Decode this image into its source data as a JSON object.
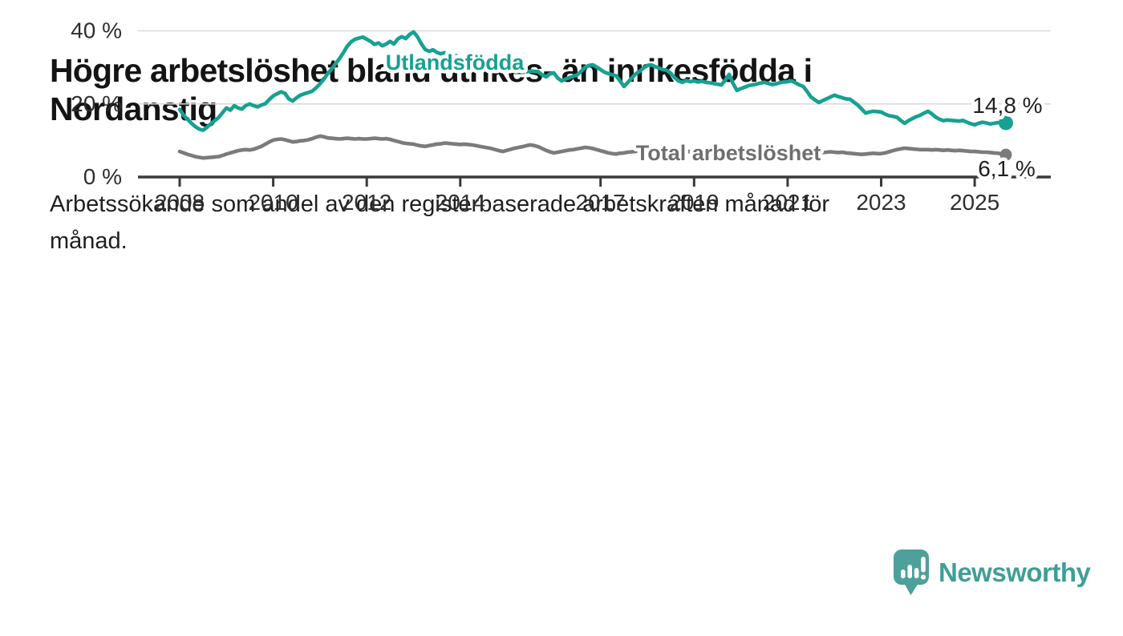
{
  "header": {
    "title_line1": "Högre arbetslöshet bland utrikes- än inrikesfödda i",
    "title_line2": "Nordanstig",
    "subtitle_line1": "Arbetssökande som andel av den registerbaserade arbetskraften månad för",
    "subtitle_line2": "månad."
  },
  "footer": {
    "brand": "Newsworthy",
    "logo_icon": "speech-bubble-bar-chart",
    "brand_color": "#3f9e96",
    "icon_color": "#4da19a"
  },
  "colors": {
    "foreign_born_line": "#16a192",
    "total_line": "#7b7b7b",
    "total_label": "#6f6f6f",
    "end_label": "#222222",
    "axis": "#3a3a3a",
    "tick_text": "#2e2e2e",
    "gridline": "#d9d9d9"
  },
  "chart_data": {
    "type": "line",
    "title": "Högre arbetslöshet bland utrikes- än inrikesfödda i Nordanstig",
    "subtitle": "Arbetssökande som andel av den registerbaserade arbetskraften månad för månad.",
    "unit": "%",
    "x_start_year": 2008,
    "x_step_months": 1,
    "x_ticks": [
      2008,
      2010,
      2012,
      2014,
      2017,
      2019,
      2021,
      2023,
      2025
    ],
    "y_ticks": [
      {
        "value": 0,
        "label": "0 %"
      },
      {
        "value": 20,
        "label": "20 %"
      },
      {
        "value": 40,
        "label": "40 %"
      }
    ],
    "ylim": [
      0,
      40
    ],
    "grid": "horizontal",
    "legend_position": "inline-labels",
    "series": [
      {
        "name": "Utlandsfödda",
        "color": "#16a192",
        "end_label": "14,8 %",
        "end_value": 14.8,
        "values": [
          18.5,
          16.9,
          15.8,
          14.7,
          13.8,
          13.1,
          12.8,
          13.6,
          14.6,
          15.4,
          16.3,
          17.6,
          18.9,
          18.3,
          19.5,
          18.9,
          18.6,
          19.6,
          20.0,
          19.5,
          19.2,
          19.7,
          20.1,
          21.2,
          22.2,
          22.8,
          23.3,
          22.9,
          21.4,
          20.8,
          21.7,
          22.4,
          22.8,
          23.1,
          23.5,
          24.4,
          25.5,
          26.8,
          28.3,
          29.6,
          31.0,
          32.4,
          34.0,
          35.8,
          37.0,
          37.7,
          38.0,
          38.3,
          37.7,
          37.1,
          36.3,
          36.7,
          35.9,
          36.4,
          37.1,
          36.4,
          37.8,
          38.4,
          37.9,
          39.0,
          39.7,
          38.4,
          36.5,
          34.9,
          34.4,
          34.8,
          34.1,
          33.7,
          34.0,
          33.3,
          32.9,
          33.2,
          32.7,
          32.3,
          31.9,
          32.1,
          31.5,
          31.1,
          30.8,
          31.0,
          30.4,
          30.1,
          30.3,
          29.8,
          29.6,
          29.9,
          29.3,
          29.0,
          29.2,
          28.8,
          29.0,
          28.9,
          28.8,
          28.0,
          27.4,
          28.2,
          28.5,
          27.1,
          26.3,
          26.8,
          27.2,
          27.6,
          27.9,
          28.9,
          30.0,
          30.5,
          30.7,
          30.1,
          29.4,
          28.7,
          28.3,
          28.0,
          27.7,
          26.3,
          24.8,
          25.9,
          27.1,
          28.2,
          28.9,
          29.8,
          30.5,
          30.7,
          30.2,
          29.8,
          29.4,
          29.2,
          28.4,
          27.2,
          26.3,
          25.9,
          26.4,
          26.1,
          26.3,
          26.0,
          26.2,
          25.9,
          25.8,
          25.6,
          25.4,
          25.2,
          26.5,
          28.1,
          25.6,
          23.7,
          24.2,
          24.6,
          25.0,
          25.2,
          25.4,
          25.7,
          25.9,
          25.6,
          25.3,
          25.5,
          25.8,
          26.0,
          26.1,
          26.3,
          25.8,
          25.2,
          24.8,
          23.4,
          21.9,
          21.1,
          20.4,
          20.9,
          21.4,
          21.9,
          22.4,
          22.0,
          21.7,
          21.4,
          21.3,
          20.5,
          19.7,
          18.6,
          17.5,
          17.8,
          18.0,
          17.9,
          17.8,
          17.2,
          16.8,
          16.6,
          16.4,
          15.5,
          14.7,
          15.4,
          16.0,
          16.5,
          16.9,
          17.5,
          18.0,
          17.3,
          16.4,
          15.8,
          15.4,
          15.6,
          15.5,
          15.4,
          15.3,
          15.5,
          15.0,
          14.6,
          14.3,
          14.7,
          15.0,
          14.8,
          14.5,
          14.7,
          14.9,
          14.7,
          14.8
        ]
      },
      {
        "name": "Total arbetslöshet",
        "color": "#7b7b7b",
        "end_label": "6,1 %",
        "end_value": 6.1,
        "values": [
          7.0,
          6.6,
          6.2,
          5.9,
          5.6,
          5.4,
          5.2,
          5.3,
          5.4,
          5.5,
          5.6,
          5.9,
          6.3,
          6.6,
          6.9,
          7.2,
          7.4,
          7.5,
          7.4,
          7.6,
          8.0,
          8.4,
          9.0,
          9.6,
          10.1,
          10.3,
          10.4,
          10.2,
          9.9,
          9.6,
          9.7,
          9.9,
          10.0,
          10.2,
          10.5,
          10.9,
          11.2,
          11.0,
          10.7,
          10.6,
          10.5,
          10.4,
          10.5,
          10.6,
          10.5,
          10.4,
          10.5,
          10.4,
          10.4,
          10.5,
          10.6,
          10.5,
          10.4,
          10.5,
          10.3,
          10.0,
          9.7,
          9.4,
          9.2,
          9.1,
          9.0,
          8.7,
          8.5,
          8.4,
          8.6,
          8.8,
          9.0,
          9.1,
          9.3,
          9.2,
          9.1,
          9.0,
          8.9,
          9.0,
          8.9,
          8.8,
          8.6,
          8.4,
          8.2,
          8.0,
          7.8,
          7.5,
          7.2,
          7.0,
          7.3,
          7.6,
          7.9,
          8.1,
          8.3,
          8.6,
          8.8,
          8.6,
          8.3,
          7.8,
          7.3,
          6.9,
          6.6,
          6.8,
          7.0,
          7.2,
          7.4,
          7.5,
          7.7,
          7.9,
          8.1,
          8.0,
          7.8,
          7.5,
          7.2,
          6.9,
          6.6,
          6.4,
          6.3,
          6.5,
          6.6,
          6.8,
          6.9,
          7.0,
          7.1,
          7.0,
          6.9,
          7.0,
          6.8,
          6.7,
          6.8,
          6.6,
          6.5,
          6.6,
          6.7,
          6.8,
          6.9,
          7.0,
          6.9,
          6.8,
          6.9,
          7.0,
          7.1,
          7.0,
          6.9,
          7.0,
          7.1,
          7.2,
          7.3,
          7.4,
          7.3,
          7.2,
          7.4,
          7.6,
          7.7,
          7.8,
          7.7,
          7.6,
          7.5,
          7.4,
          7.3,
          7.2,
          7.1,
          7.2,
          7.3,
          7.2,
          7.0,
          6.9,
          6.8,
          6.7,
          6.6,
          6.7,
          6.8,
          6.9,
          6.8,
          6.7,
          6.8,
          6.6,
          6.5,
          6.4,
          6.3,
          6.2,
          6.3,
          6.4,
          6.5,
          6.4,
          6.4,
          6.6,
          6.9,
          7.2,
          7.5,
          7.7,
          7.9,
          7.8,
          7.7,
          7.6,
          7.5,
          7.5,
          7.5,
          7.4,
          7.5,
          7.4,
          7.3,
          7.4,
          7.3,
          7.2,
          7.3,
          7.2,
          7.1,
          7.0,
          7.0,
          6.9,
          6.8,
          6.8,
          6.7,
          6.6,
          6.5,
          6.3,
          6.1
        ]
      }
    ]
  }
}
